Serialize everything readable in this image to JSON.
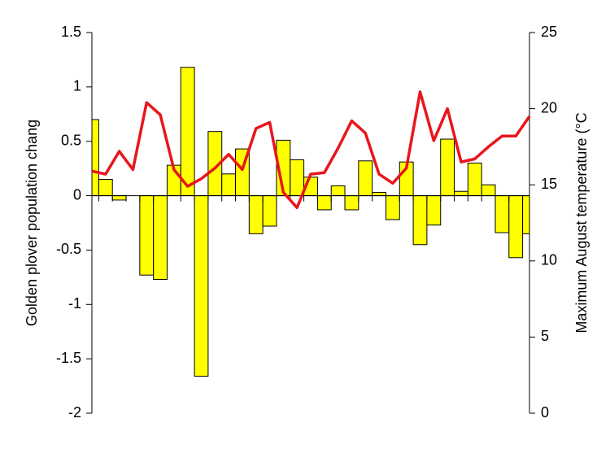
{
  "chart_data": {
    "type": "bar-line",
    "y_label": "Golden plover population chang",
    "y2_label": "Maximum August temperature (°C",
    "categories": [
      null,
      null,
      null,
      null,
      null,
      null,
      null,
      null,
      null,
      null,
      null,
      null,
      null,
      null,
      null,
      null,
      null,
      null,
      null,
      null,
      null,
      null,
      null,
      null,
      null,
      null,
      null,
      null,
      null,
      null,
      null,
      null,
      null
    ],
    "series": [
      {
        "type": "bar",
        "color": "#ffff00",
        "values": [
          0.7,
          0.15,
          -0.04,
          0,
          -0.73,
          -0.77,
          0.28,
          1.18,
          -1.66,
          0.59,
          0.2,
          0.43,
          -0.35,
          -0.28,
          0.51,
          0.33,
          0.17,
          -0.13,
          0.09,
          -0.13,
          0.32,
          0.03,
          -0.22,
          0.31,
          -0.45,
          -0.27,
          0.52,
          0.04,
          0.3,
          0.1,
          -0.34,
          -0.57,
          -0.35
        ]
      },
      {
        "type": "line",
        "axis": "y2",
        "color": "#e8161c",
        "values": [
          15.9,
          15.7,
          17.2,
          16.0,
          20.4,
          19.6,
          16.0,
          14.9,
          15.4,
          16.1,
          17.0,
          16.0,
          18.7,
          19.1,
          14.5,
          13.5,
          15.7,
          15.8,
          17.4,
          19.2,
          18.4,
          15.7,
          15.1,
          16.1,
          21.1,
          17.9,
          20.0,
          16.5,
          16.7,
          17.5,
          18.2,
          18.2,
          19.5
        ]
      }
    ],
    "ylim": [
      -2,
      1.5
    ],
    "yticks": [
      -2,
      -1.5,
      -1,
      -0.5,
      0,
      0.5,
      1,
      1.5
    ],
    "y2lim": [
      0,
      25
    ],
    "y2ticks": [
      0,
      5,
      10,
      15,
      20,
      25
    ]
  }
}
